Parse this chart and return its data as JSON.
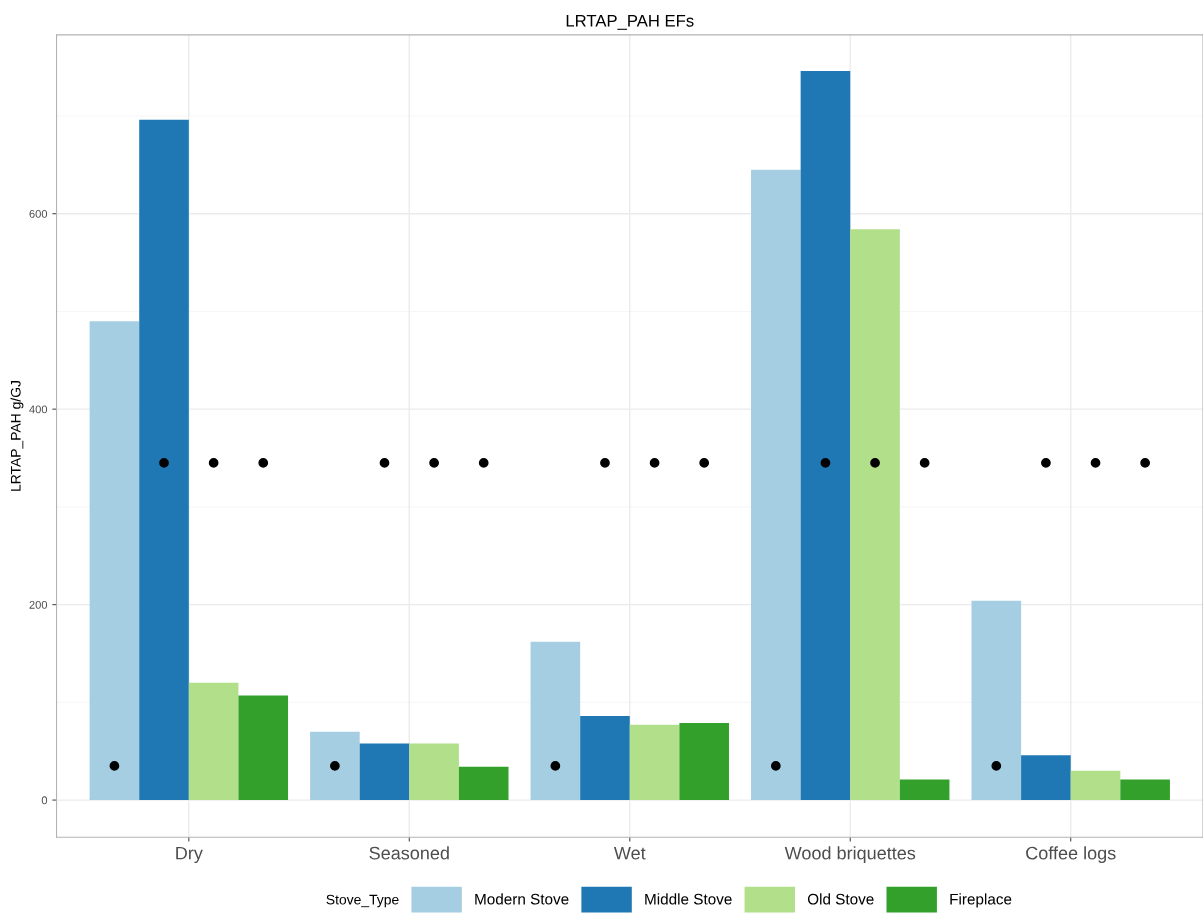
{
  "chart_data": {
    "type": "bar",
    "title": "LRTAP_PAH EFs",
    "ylabel": "LRTAP_PAH g/GJ",
    "legend_title": "Stove_Type",
    "categories": [
      "Dry",
      "Seasoned",
      "Wet",
      "Wood briquettes",
      "Coffee logs"
    ],
    "series": [
      {
        "name": "Modern Stove",
        "color": "#a6cee3",
        "values": [
          490,
          70,
          162,
          645,
          204
        ]
      },
      {
        "name": "Middle Stove",
        "color": "#1f78b4",
        "values": [
          696,
          58,
          86,
          746,
          46
        ]
      },
      {
        "name": "Old Stove",
        "color": "#b2df8a",
        "values": [
          120,
          58,
          77,
          584,
          30
        ]
      },
      {
        "name": "Fireplace",
        "color": "#33a02c",
        "values": [
          107,
          34,
          79,
          21,
          21
        ]
      },
      {
        "type": "scatter",
        "color": "#000000",
        "values": [
          35,
          35,
          35,
          35,
          35
        ]
      },
      {
        "type": "scatter",
        "color": "#000000",
        "values": [
          345,
          345,
          345,
          345,
          345
        ]
      },
      {
        "type": "scatter",
        "color": "#000000",
        "values": [
          345,
          345,
          345,
          345,
          345
        ]
      },
      {
        "type": "scatter",
        "color": "#000000",
        "values": [
          345,
          345,
          345,
          345,
          345
        ]
      }
    ],
    "ylim": [
      -38,
      783
    ],
    "yticks": [
      0,
      200,
      400,
      600
    ],
    "grid": true,
    "legend": "bottom",
    "marker": "circle"
  }
}
